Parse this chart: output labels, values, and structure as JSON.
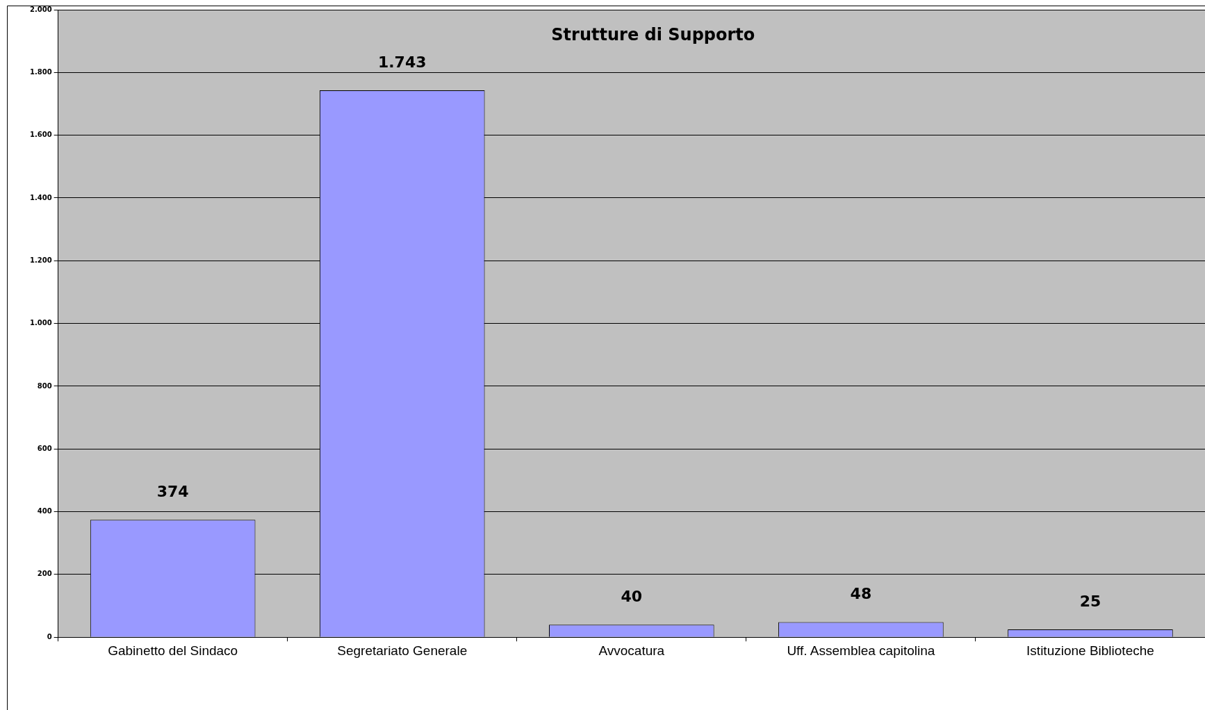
{
  "chart_data": {
    "type": "bar",
    "title": "Strutture di Supporto",
    "categories": [
      "Gabinetto del Sindaco",
      "Segretariato Generale",
      "Avvocatura",
      "Uff. Assemblea capitolina",
      "Istituzione Biblioteche"
    ],
    "values": [
      374,
      1743,
      40,
      48,
      25
    ],
    "value_labels": [
      "374",
      "1.743",
      "40",
      "48",
      "25"
    ],
    "color": "#9999ff",
    "ylim": [
      0,
      2000
    ],
    "yticks": [
      {
        "value": 0,
        "label": "0"
      },
      {
        "value": 200,
        "label": "200"
      },
      {
        "value": 400,
        "label": "400"
      },
      {
        "value": 600,
        "label": "600"
      },
      {
        "value": 800,
        "label": "800"
      },
      {
        "value": 1000,
        "label": "1.000"
      },
      {
        "value": 1200,
        "label": "1.200"
      },
      {
        "value": 1400,
        "label": "1.400"
      },
      {
        "value": 1600,
        "label": "1.600"
      },
      {
        "value": 1800,
        "label": "1.800"
      },
      {
        "value": 2000,
        "label": "2.000"
      }
    ],
    "grid": "y",
    "legend": false
  }
}
